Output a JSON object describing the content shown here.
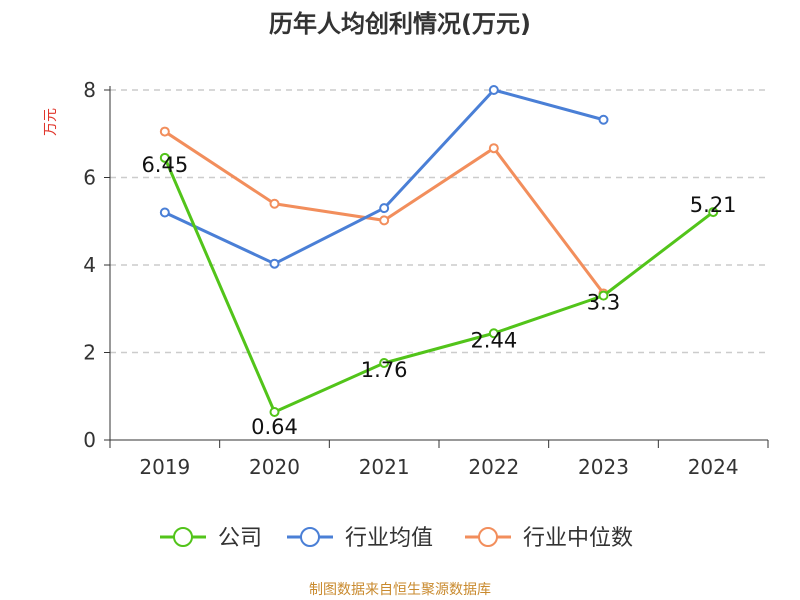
{
  "chart_data": {
    "type": "line",
    "title": "历年人均创利情况(万元)",
    "ylabel": "万元",
    "xlabel": "",
    "categories": [
      "2019",
      "2020",
      "2021",
      "2022",
      "2023",
      "2024"
    ],
    "ylim": [
      0,
      8
    ],
    "yticks": [
      0,
      2,
      4,
      6,
      8
    ],
    "grid": true,
    "legend_position": "bottom",
    "series": [
      {
        "name": "公司",
        "color": "#52c41a",
        "values": [
          6.45,
          0.64,
          1.76,
          2.44,
          3.3,
          5.21
        ],
        "labels": [
          "6.45",
          "0.64",
          "1.76",
          "2.44",
          "3.3",
          "5.21"
        ]
      },
      {
        "name": "行业均值",
        "color": "#4a7fd6",
        "values": [
          5.2,
          4.03,
          5.3,
          8.0,
          7.32,
          null
        ]
      },
      {
        "name": "行业中位数",
        "color": "#f28e5c",
        "values": [
          7.05,
          5.4,
          5.02,
          6.67,
          3.35,
          null
        ]
      }
    ],
    "source": "制图数据来自恒生聚源数据库"
  }
}
